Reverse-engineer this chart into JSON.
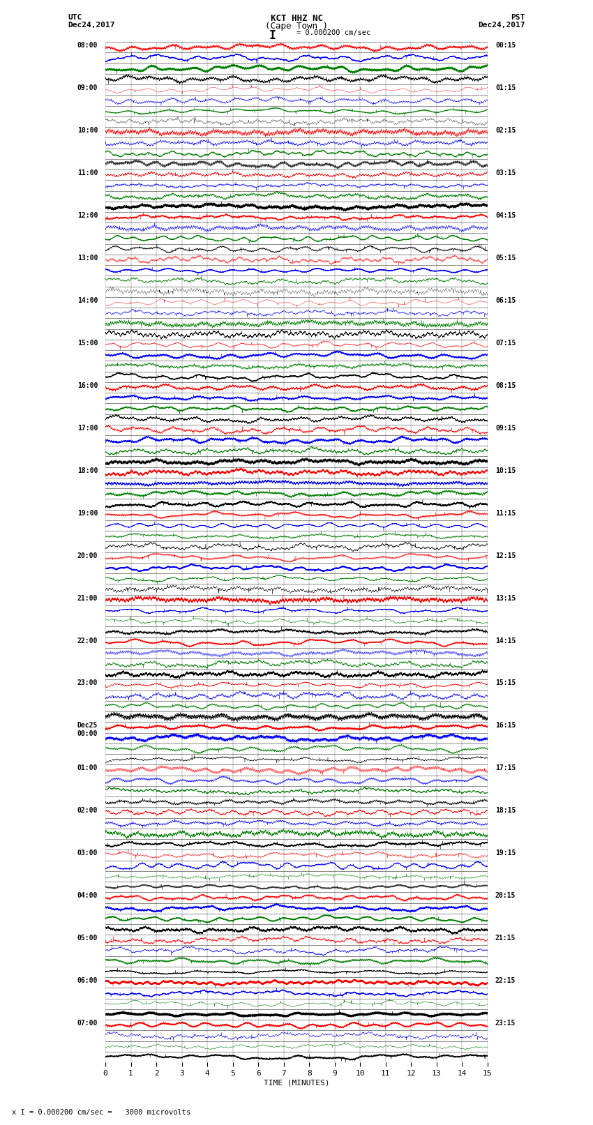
{
  "title_line1": "KCT HHZ NC",
  "title_line2": "(Cape Town )",
  "scale_label": "I = 0.000200 cm/sec",
  "left_label_line1": "UTC",
  "left_label_line2": "Dec24,2017",
  "right_label_line1": "PST",
  "right_label_line2": "Dec24,2017",
  "bottom_label": "TIME (MINUTES)",
  "bottom_note": "x I = 0.000200 cm/sec =   3000 microvolts",
  "utc_times_major": [
    "08:00",
    "09:00",
    "10:00",
    "11:00",
    "12:00",
    "13:00",
    "14:00",
    "15:00",
    "16:00",
    "17:00",
    "18:00",
    "19:00",
    "20:00",
    "21:00",
    "22:00",
    "23:00",
    "Dec25\n00:00",
    "01:00",
    "02:00",
    "03:00",
    "04:00",
    "05:00",
    "06:00",
    "07:00"
  ],
  "pst_times_major": [
    "00:15",
    "01:15",
    "02:15",
    "03:15",
    "04:15",
    "05:15",
    "06:15",
    "07:15",
    "08:15",
    "09:15",
    "10:15",
    "11:15",
    "12:15",
    "13:15",
    "14:15",
    "15:15",
    "16:15",
    "17:15",
    "18:15",
    "19:15",
    "20:15",
    "21:15",
    "22:15",
    "23:15"
  ],
  "n_hours": 24,
  "traces_per_hour": 4,
  "minutes_per_row": 15,
  "trace_colors": [
    "red",
    "blue",
    "green",
    "black"
  ],
  "bg_color": "white",
  "fig_width": 8.5,
  "fig_height": 16.13,
  "dpi": 100
}
